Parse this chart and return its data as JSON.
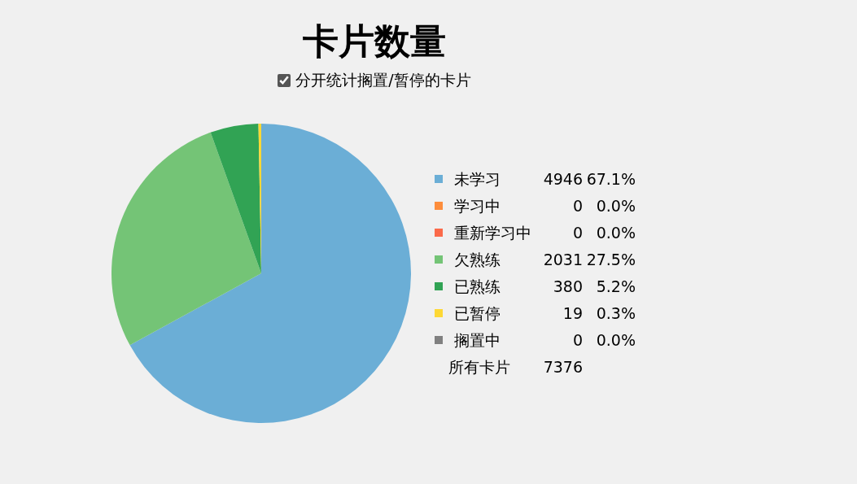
{
  "chart_data": {
    "type": "pie",
    "title": "卡片数量",
    "subtitle": "分开统计搁置/暂停的卡片",
    "categories": [
      "未学习",
      "学习中",
      "重新学习中",
      "欠熟练",
      "已熟练",
      "已暂停",
      "搁置中"
    ],
    "values": [
      67.1,
      0.0,
      0.0,
      27.5,
      5.2,
      0.3,
      0.0
    ],
    "colors": [
      "#6baed6",
      "#fd8d3c",
      "#fb6a4a",
      "#74c476",
      "#31a354",
      "#fdd835",
      "#808080"
    ],
    "value_labels": [
      "67.1%",
      "0.0%",
      "0.0%",
      "27.5%",
      "5.2%",
      "0.3%",
      "0.0%"
    ],
    "annotations": [
      "4946",
      "0",
      "0",
      "2031",
      "380",
      "19",
      "0",
      "所有卡片"
    ],
    "totals": [
      "7376"
    ],
    "legend": "right"
  }
}
